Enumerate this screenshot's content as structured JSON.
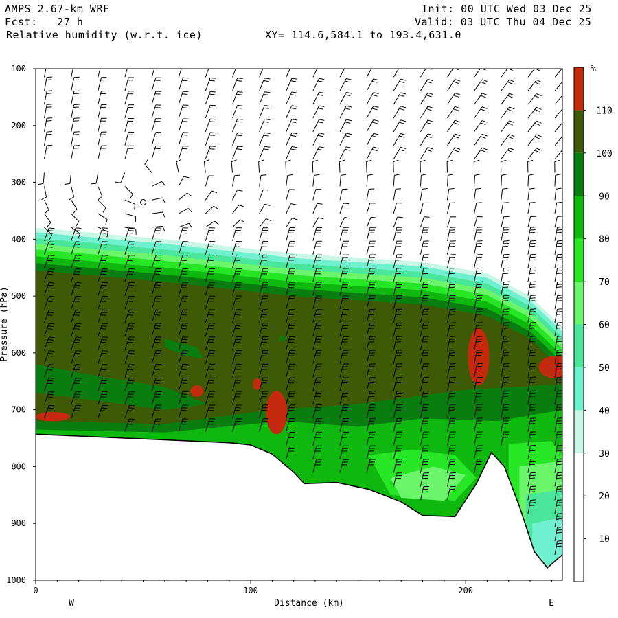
{
  "header": {
    "model": "AMPS 2.67-km WRF",
    "forecast": "Fcst:   27 h",
    "field": "Relative humidity (w.r.t. ice)",
    "init": "Init: 00 UTC Wed 03 Dec 25",
    "valid": "Valid: 03 UTC Thu 04 Dec 25",
    "xy": "XY= 114.6,584.1 to 193.4,631.0"
  },
  "chart_data": {
    "type": "heatmap",
    "title": "Relative humidity (w.r.t. ice)",
    "xlabel": "Distance (km)",
    "ylabel": "Pressure (hPa)",
    "xlim": [
      0,
      245
    ],
    "ylim": [
      1000,
      100
    ],
    "x_ticks": [
      0,
      100,
      200
    ],
    "y_ticks": [
      100,
      200,
      300,
      400,
      500,
      600,
      700,
      800,
      900,
      1000
    ],
    "x_end_labels": {
      "left": "W",
      "right": "E"
    },
    "colorbar": {
      "unit": "%",
      "levels": [
        10,
        20,
        30,
        40,
        50,
        60,
        70,
        80,
        90,
        100,
        110
      ],
      "colors": [
        "#ffffff",
        "#ffffff",
        "#ffffff",
        "#c8f7e6",
        "#6ff0cf",
        "#4ae69c",
        "#6af56a",
        "#26e626",
        "#0fb80f",
        "#0a7d10",
        "#3f5a05",
        "#c42a0d"
      ]
    },
    "terrain_pressure": [
      [
        0,
        743
      ],
      [
        30,
        748
      ],
      [
        60,
        753
      ],
      [
        90,
        758
      ],
      [
        100,
        762
      ],
      [
        110,
        778
      ],
      [
        120,
        810
      ],
      [
        125,
        830
      ],
      [
        140,
        828
      ],
      [
        155,
        840
      ],
      [
        170,
        862
      ],
      [
        180,
        886
      ],
      [
        195,
        888
      ],
      [
        205,
        830
      ],
      [
        212,
        775
      ],
      [
        218,
        800
      ],
      [
        225,
        870
      ],
      [
        232,
        950
      ],
      [
        238,
        978
      ],
      [
        245,
        955
      ]
    ]
  }
}
